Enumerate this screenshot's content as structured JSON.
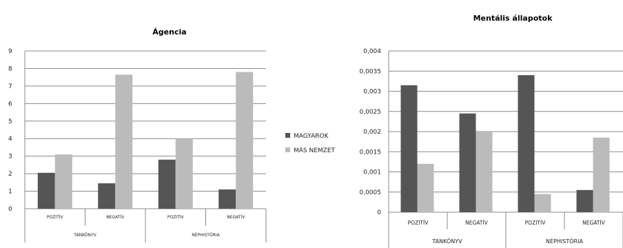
{
  "colors": {
    "series1": "#555555",
    "series2": "#bbbbbb",
    "grid": "#888888",
    "axis": "#888888"
  },
  "legend": {
    "items": [
      "MAGYAROK",
      "MÁS NEMZET"
    ],
    "placement": "between charts"
  },
  "chart_data": [
    {
      "type": "bar",
      "title": "Ágencia",
      "categories": [
        "POZITÍV",
        "NEGATÍV",
        "POZITÍV",
        "NEGATÍV"
      ],
      "groups": [
        {
          "label": "TANKÖNYV",
          "span": [
            0,
            1
          ]
        },
        {
          "label": "NÉPHISTÓRIA",
          "span": [
            2,
            3
          ]
        }
      ],
      "series": [
        {
          "name": "MAGYAROK",
          "values": [
            2.05,
            1.45,
            2.8,
            1.1
          ]
        },
        {
          "name": "MÁS NEMZET",
          "values": [
            3.1,
            7.65,
            4.0,
            7.8
          ]
        }
      ],
      "ylim": [
        0,
        9
      ],
      "yticks": [
        "0",
        "1",
        "2",
        "3",
        "4",
        "5",
        "6",
        "7",
        "8",
        "9"
      ],
      "grid": true
    },
    {
      "type": "bar",
      "title": "Mentális állapotok",
      "categories": [
        "POZITÍV",
        "NEGATÍV",
        "POZITÍV",
        "NEGATÍV"
      ],
      "groups": [
        {
          "label": "TANKÖNYV",
          "span": [
            0,
            1
          ]
        },
        {
          "label": "NÉPHISTÓRIA",
          "span": [
            2,
            3
          ]
        }
      ],
      "series": [
        {
          "name": "MAGYAROK",
          "values": [
            0.00315,
            0.00245,
            0.0034,
            0.00055
          ]
        },
        {
          "name": "MÁS NEMZET",
          "values": [
            0.0012,
            0.002,
            0.00045,
            0.00185
          ]
        }
      ],
      "ylim": [
        0,
        0.004
      ],
      "yticks": [
        "0",
        "0,0005",
        "0,001",
        "0,0015",
        "0,002",
        "0,0025",
        "0,003",
        "0,0035",
        "0,004"
      ],
      "grid": true
    }
  ]
}
